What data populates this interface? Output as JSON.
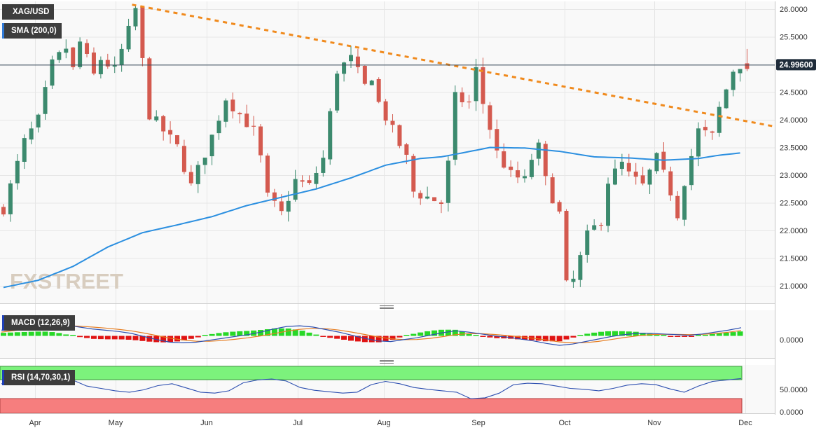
{
  "chart_data": [
    {
      "type": "candlestick",
      "title": "XAG/USD",
      "overlay_label": "SMA (200,0)",
      "current_price_label": "24.99600",
      "ylim": [
        20.7,
        26.1
      ],
      "y_ticks": [
        "26.0000",
        "25.5000",
        "25.0000",
        "24.5000",
        "24.0000",
        "23.5000",
        "23.0000",
        "22.5000",
        "22.0000",
        "21.5000",
        "21.0000"
      ],
      "x_ticks": [
        "Apr",
        "May",
        "Jun",
        "Jul",
        "Aug",
        "Sep",
        "Oct",
        "Nov",
        "Dec"
      ],
      "close_path": [
        [
          0,
          22.4
        ],
        [
          3,
          23.6
        ],
        [
          5,
          24.0
        ],
        [
          7,
          25.0
        ],
        [
          9,
          25.3
        ],
        [
          10,
          24.9
        ],
        [
          11,
          25.4
        ],
        [
          13,
          24.8
        ],
        [
          14,
          25.1
        ],
        [
          16,
          24.9
        ],
        [
          18,
          25.6
        ],
        [
          19,
          26.0
        ],
        [
          21,
          24.1
        ],
        [
          23,
          23.8
        ],
        [
          25,
          23.5
        ],
        [
          27,
          22.8
        ],
        [
          30,
          23.7
        ],
        [
          32,
          24.4
        ],
        [
          34,
          24.1
        ],
        [
          36,
          23.8
        ],
        [
          37,
          23.3
        ],
        [
          38,
          22.6
        ],
        [
          40,
          22.3
        ],
        [
          42,
          22.9
        ],
        [
          44,
          22.8
        ],
        [
          46,
          23.3
        ],
        [
          48,
          24.9
        ],
        [
          50,
          25.1
        ],
        [
          52,
          24.6
        ],
        [
          53,
          24.8
        ],
        [
          54,
          24.3
        ],
        [
          56,
          23.8
        ],
        [
          58,
          23.3
        ],
        [
          59,
          22.7
        ],
        [
          61,
          22.6
        ],
        [
          63,
          22.5
        ],
        [
          64,
          23.2
        ],
        [
          65,
          24.4
        ],
        [
          67,
          24.3
        ],
        [
          68,
          24.9
        ],
        [
          69,
          24.3
        ],
        [
          71,
          23.4
        ],
        [
          73,
          23.0
        ],
        [
          75,
          22.9
        ],
        [
          76,
          23.3
        ],
        [
          77,
          23.5
        ],
        [
          78,
          22.9
        ],
        [
          80,
          22.3
        ],
        [
          81,
          21.0
        ],
        [
          82,
          21.1
        ],
        [
          84,
          21.9
        ],
        [
          86,
          22.2
        ],
        [
          87,
          22.9
        ],
        [
          89,
          23.2
        ],
        [
          90,
          23.0
        ],
        [
          92,
          22.8
        ],
        [
          94,
          23.3
        ],
        [
          96,
          22.7
        ],
        [
          97,
          22.3
        ],
        [
          98,
          22.9
        ],
        [
          100,
          23.8
        ],
        [
          102,
          23.7
        ],
        [
          103,
          24.2
        ],
        [
          105,
          24.9
        ],
        [
          106,
          25.0
        ]
      ],
      "sma_path": [
        [
          0,
          20.97
        ],
        [
          5,
          21.1
        ],
        [
          10,
          21.35
        ],
        [
          15,
          21.7
        ],
        [
          20,
          21.96
        ],
        [
          25,
          22.1
        ],
        [
          30,
          22.25
        ],
        [
          35,
          22.45
        ],
        [
          40,
          22.6
        ],
        [
          45,
          22.75
        ],
        [
          50,
          22.95
        ],
        [
          55,
          23.18
        ],
        [
          60,
          23.3
        ],
        [
          63,
          23.33
        ],
        [
          66,
          23.4
        ],
        [
          70,
          23.5
        ],
        [
          75,
          23.49
        ],
        [
          80,
          23.43
        ],
        [
          85,
          23.33
        ],
        [
          90,
          23.31
        ],
        [
          95,
          23.27
        ],
        [
          100,
          23.3
        ],
        [
          103,
          23.36
        ],
        [
          106,
          23.4
        ]
      ],
      "trendline": {
        "start": [
          18.5,
          26.08
        ],
        "end": [
          113,
          23.83
        ]
      }
    },
    {
      "type": "line",
      "title": "MACD (12,26,9)",
      "y_ticks": [
        "0.0000"
      ],
      "series": [
        {
          "values": [
            0.45,
            0.6,
            0.75,
            0.9,
            0.95,
            0.85,
            0.7,
            0.55,
            0.45,
            0.35,
            0.2,
            -0.05,
            -0.3,
            -0.5,
            -0.55,
            -0.5,
            -0.35,
            -0.2,
            -0.05,
            0.1,
            0.3,
            0.55,
            0.75,
            0.8,
            0.7,
            0.5,
            0.3,
            0.05,
            -0.2,
            -0.4,
            -0.45,
            -0.3,
            -0.15,
            0.05,
            0.25,
            0.4,
            0.3,
            0.15,
            0.0,
            -0.1,
            -0.25,
            -0.4,
            -0.6,
            -0.75,
            -0.65,
            -0.45,
            -0.25,
            -0.05,
            0.1,
            0.2,
            0.2,
            0.15,
            0.1,
            0.05,
            0.15,
            0.3,
            0.45,
            0.65
          ]
        },
        {
          "values": [
            0.3,
            0.42,
            0.55,
            0.68,
            0.77,
            0.8,
            0.77,
            0.7,
            0.62,
            0.52,
            0.4,
            0.22,
            0.02,
            -0.18,
            -0.33,
            -0.42,
            -0.43,
            -0.37,
            -0.27,
            -0.15,
            0.0,
            0.18,
            0.38,
            0.52,
            0.6,
            0.57,
            0.46,
            0.3,
            0.11,
            -0.08,
            -0.23,
            -0.3,
            -0.29,
            -0.2,
            -0.06,
            0.1,
            0.18,
            0.17,
            0.11,
            0.03,
            -0.07,
            -0.19,
            -0.33,
            -0.48,
            -0.55,
            -0.54,
            -0.44,
            -0.29,
            -0.13,
            0.0,
            0.1,
            0.13,
            0.12,
            0.1,
            0.12,
            0.19,
            0.29,
            0.43
          ]
        }
      ]
    },
    {
      "type": "line",
      "title": "RSI (14,70,30,1)",
      "y_ticks": [
        "50.0000",
        "0.0000"
      ],
      "series": [
        {
          "values": [
            60,
            62,
            66,
            70,
            72,
            68,
            55,
            50,
            45,
            42,
            47,
            56,
            60,
            51,
            42,
            40,
            45,
            62,
            68,
            70,
            66,
            52,
            46,
            43,
            40,
            42,
            58,
            65,
            60,
            52,
            48,
            45,
            42,
            28,
            30,
            40,
            58,
            61,
            60,
            55,
            50,
            48,
            45,
            50,
            57,
            60,
            58,
            49,
            42,
            55,
            65,
            68,
            71
          ]
        }
      ]
    }
  ],
  "watermark": "FXSTREET"
}
